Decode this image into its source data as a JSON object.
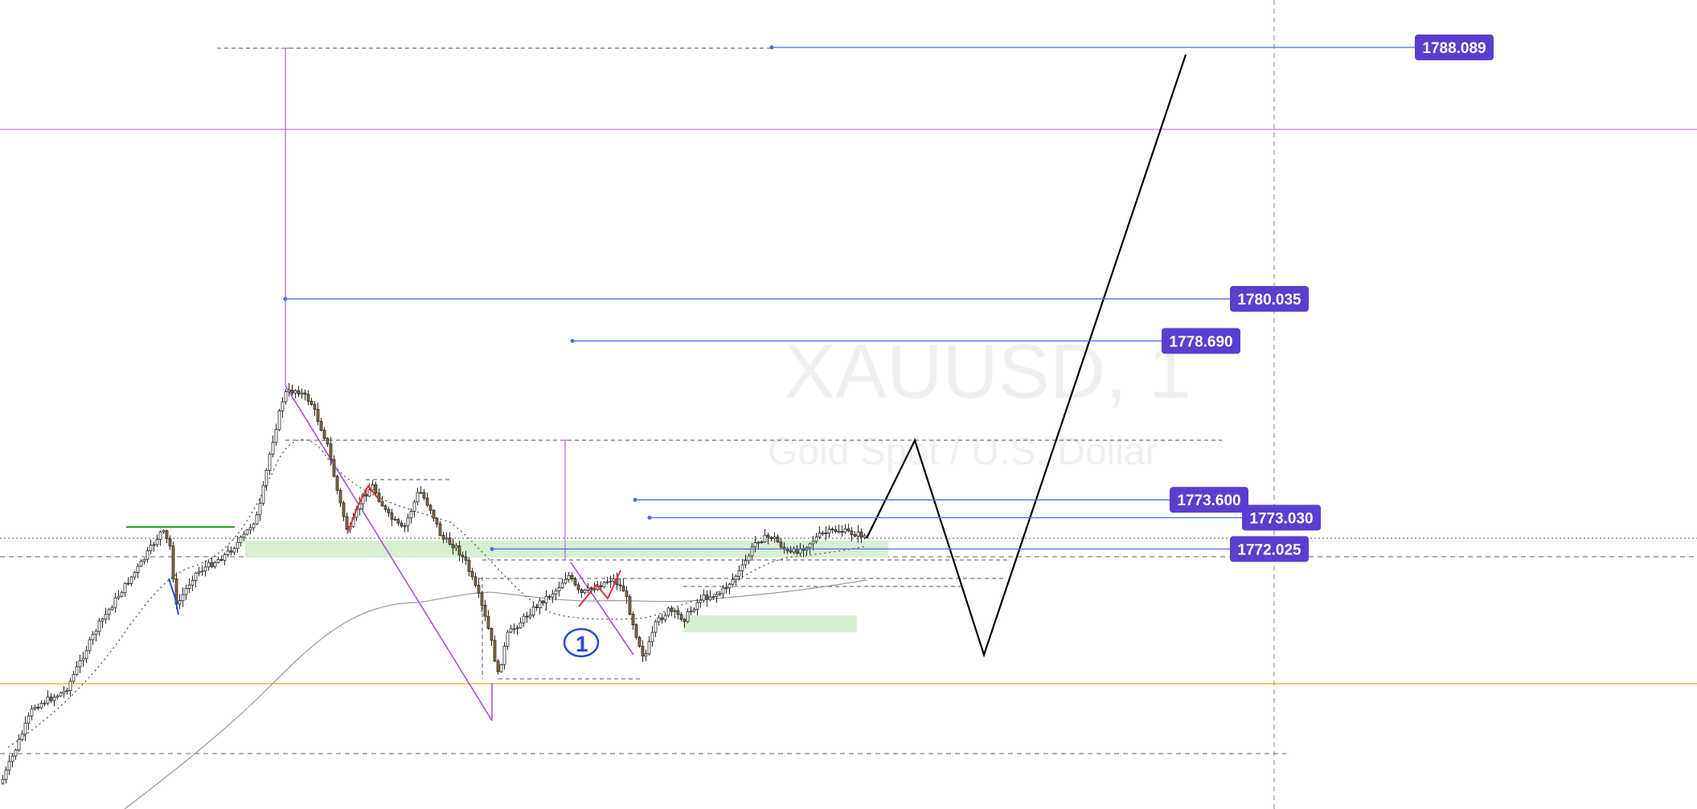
{
  "chart_data": {
    "type": "candlestick",
    "title": "XAUUSD, 1",
    "subtitle": "Gold Spot / U.S. Dollar",
    "symbol": "XAUUSD",
    "interval": "1",
    "ylim": [
      1771.0,
      1789.5
    ],
    "grid": false,
    "legend": "none",
    "price_levels": [
      {
        "label": "1788.089",
        "value": 1788.089
      },
      {
        "label": "1780.035",
        "value": 1780.035
      },
      {
        "label": "1778.690",
        "value": 1778.69
      },
      {
        "label": "1773.600",
        "value": 1773.6
      },
      {
        "label": "1773.030",
        "value": 1773.03
      },
      {
        "label": "1772.025",
        "value": 1772.025
      }
    ],
    "annotation_number": "1"
  },
  "colors": {
    "label_bg": "#5b3ecf",
    "level_line": "#4a6ee0",
    "magenta": "#c07fdf",
    "orange": "#f5a623",
    "zone": "#d8efd3",
    "bull_candle": "#2a2a2a",
    "bear_candle": "#8a6a3a",
    "forecast": "#000000",
    "sma": "#9a9a9a",
    "green": "#22aa22",
    "red_path": "#e0303a",
    "blue_path": "#2a4ad8"
  },
  "icons": [
    "circled-number-annotation"
  ]
}
